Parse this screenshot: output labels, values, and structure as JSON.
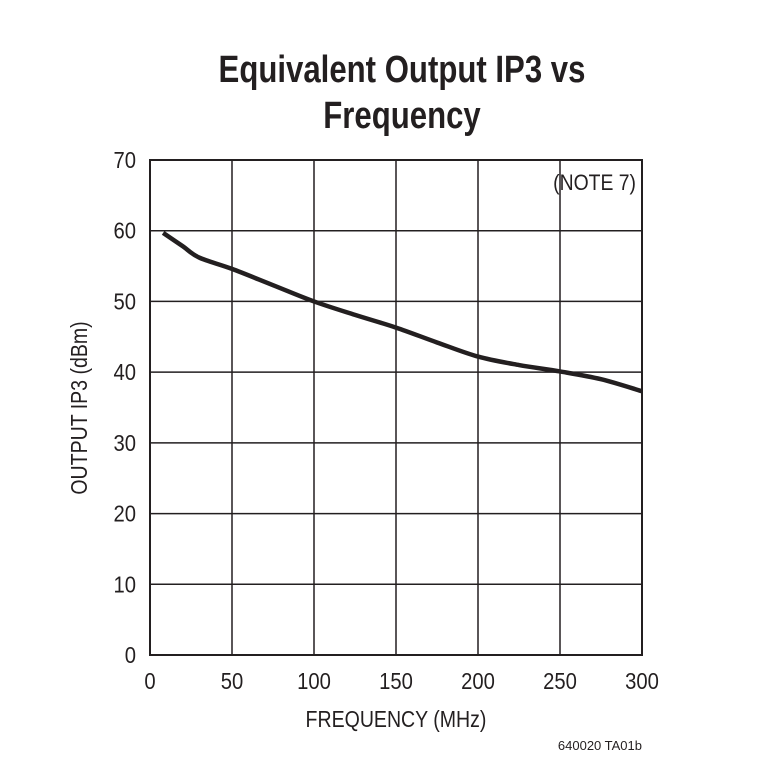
{
  "chart_data": {
    "type": "line",
    "title": [
      "Equivalent Output IP3 vs",
      "Frequency"
    ],
    "xlabel": "FREQUENCY (MHz)",
    "ylabel": "OUTPUT IP3 (dBm)",
    "xlim": [
      0,
      300
    ],
    "ylim": [
      0,
      70
    ],
    "xticks": [
      "0",
      "50",
      "100",
      "150",
      "200",
      "250",
      "300"
    ],
    "yticks": [
      "0",
      "10",
      "20",
      "30",
      "40",
      "50",
      "60",
      "70"
    ],
    "grid": true,
    "annotation": "(NOTE 7)",
    "footer": "640020 TA01b",
    "line_color": "#231f20",
    "series": [
      {
        "x": [
          8,
          20,
          30,
          50,
          75,
          100,
          125,
          150,
          175,
          200,
          225,
          250,
          275,
          300
        ],
        "y": [
          59.7,
          57.8,
          56.2,
          54.6,
          52.3,
          50.0,
          48.1,
          46.3,
          44.2,
          42.2,
          41.0,
          40.1,
          39.0,
          37.3
        ]
      }
    ]
  }
}
